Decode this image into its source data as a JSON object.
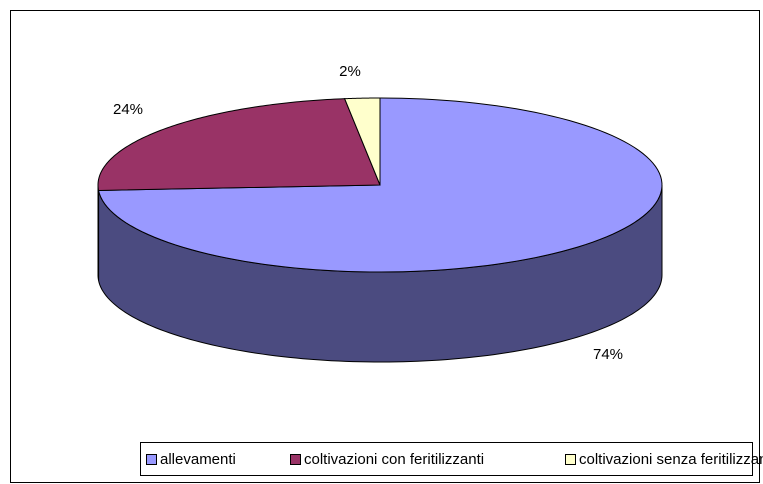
{
  "chart_data": {
    "type": "pie",
    "categories": [
      "allevamenti",
      "coltivazioni con feritilizzanti",
      "coltivazioni senza feritilizzanti"
    ],
    "values": [
      74,
      24,
      2
    ],
    "value_labels": [
      "74%",
      "24%",
      "2%"
    ],
    "colors": [
      "#9999ff",
      "#993366",
      "#ffffcc"
    ],
    "side_colors": [
      "#4b4b80",
      "#4d1a33",
      "#80806a"
    ],
    "legend": "bottom"
  }
}
